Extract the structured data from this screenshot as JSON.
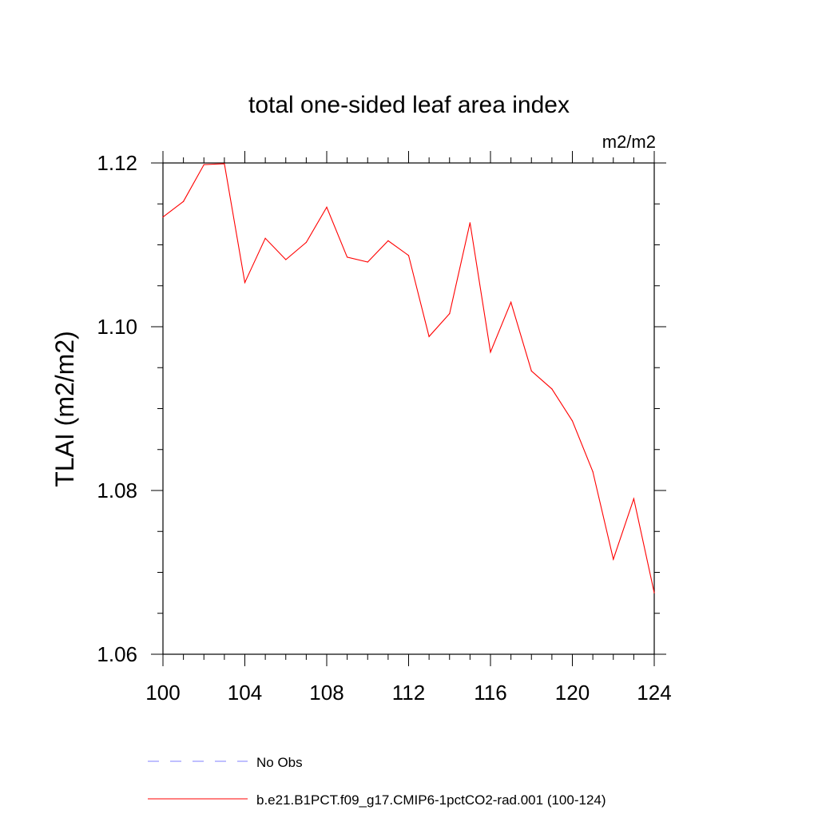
{
  "chart_data": {
    "type": "line",
    "title": "total one-sided leaf area index",
    "units": "m2/m2",
    "ylabel": "TLAI  (m2/m2)",
    "xlabel": "",
    "xlim": [
      100,
      124
    ],
    "ylim": [
      1.06,
      1.12
    ],
    "xticks": [
      "100",
      "104",
      "108",
      "112",
      "116",
      "120",
      "124"
    ],
    "yticks": [
      "1.06",
      "1.08",
      "1.10",
      "1.12"
    ],
    "grid": false,
    "legend_position": "bottom",
    "colors": {
      "series": "#ff0000",
      "obs": "#7f7fff",
      "axis": "#000000"
    },
    "series": [
      {
        "name": "b.e21.B1PCT.f09_g17.CMIP6-1pctCO2-rad.001 (100-124)",
        "x": [
          100,
          101,
          102,
          103,
          104,
          105,
          106,
          107,
          108,
          109,
          110,
          111,
          112,
          113,
          114,
          115,
          116,
          117,
          118,
          119,
          120,
          121,
          122,
          123,
          124
        ],
        "values": [
          1.1134,
          1.1153,
          1.1198,
          1.1199,
          1.1054,
          1.1108,
          1.1082,
          1.1103,
          1.1146,
          1.1085,
          1.1079,
          1.1105,
          1.1087,
          1.0988,
          1.1016,
          1.1127,
          1.0969,
          1.103,
          1.0946,
          1.0924,
          1.0885,
          1.0823,
          1.0716,
          1.079,
          1.0675
        ]
      }
    ],
    "legend": [
      {
        "label": "No Obs",
        "style": "dashed"
      },
      {
        "label": "b.e21.B1PCT.f09_g17.CMIP6-1pctCO2-rad.001 (100-124)",
        "style": "solid"
      }
    ]
  }
}
